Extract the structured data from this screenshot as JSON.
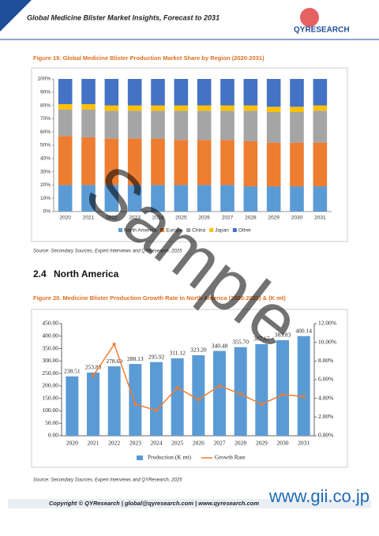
{
  "header": {
    "title": "Global Medicine Blister Market Insights, Forecast to 2031",
    "logo": "QYRESEARCH"
  },
  "watermark": "Sample",
  "section": {
    "number": "2.4",
    "title": "North America"
  },
  "sources": [
    "Source: Secondary Sources, Expert Interviews and QYResearch, 2025",
    "Source: Secondary Sources, Expert Interviews and QYResearch, 2025"
  ],
  "footer": {
    "copyright": "Copyright © QYResearch | global@qyresearch.com | www.qyresearch.com",
    "site": "www.gii.co.jp"
  },
  "chart_data": [
    {
      "type": "stacked_bar",
      "title": "Figure 19.  Global Medicine Blister Production Market Share by Region (2020-2031)",
      "categories": [
        "2020",
        "2021",
        "2022",
        "2023",
        "2024",
        "2025",
        "2026",
        "2027",
        "2028",
        "2029",
        "2030",
        "2031"
      ],
      "series": [
        {
          "name": "North America",
          "color": "#5b9bd5",
          "values": [
            20,
            20,
            20,
            20,
            20,
            20,
            20,
            20,
            19,
            19,
            19,
            19
          ]
        },
        {
          "name": "Europe",
          "color": "#ed7d31",
          "values": [
            37,
            36,
            35,
            35,
            35,
            34,
            34,
            34,
            34,
            33,
            33,
            33
          ]
        },
        {
          "name": "China",
          "color": "#a5a5a5",
          "values": [
            20,
            21,
            21,
            21,
            21,
            22,
            22,
            22,
            23,
            23,
            23,
            24
          ]
        },
        {
          "name": "Japan",
          "color": "#ffc000",
          "values": [
            4,
            4,
            4,
            4,
            4,
            4,
            4,
            4,
            4,
            4,
            4,
            4
          ]
        },
        {
          "name": "Other",
          "color": "#4472c4",
          "values": [
            19,
            19,
            20,
            20,
            20,
            20,
            20,
            20,
            20,
            21,
            21,
            20
          ]
        }
      ],
      "ylim": [
        0,
        100
      ],
      "yticks": [
        {
          "value": 0,
          "label": "0%"
        },
        {
          "value": 10,
          "label": "10%"
        },
        {
          "value": 20,
          "label": "20%"
        },
        {
          "value": 30,
          "label": "30%"
        },
        {
          "value": 40,
          "label": "40%"
        },
        {
          "value": 50,
          "label": "50%"
        },
        {
          "value": 60,
          "label": "60%"
        },
        {
          "value": 70,
          "label": "70%"
        },
        {
          "value": 80,
          "label": "80%"
        },
        {
          "value": 90,
          "label": "90%"
        },
        {
          "value": 100,
          "label": "100%"
        }
      ],
      "grid": false
    },
    {
      "type": "bar",
      "title": "Figure 20.  Medicine Blister Production Growth Rate in North America (2020-2031) & (K mt)",
      "categories": [
        "2020",
        "2021",
        "2022",
        "2023",
        "2024",
        "2025",
        "2026",
        "2027",
        "2028",
        "2029",
        "2030",
        "2031"
      ],
      "series": [
        {
          "name": "Production (K mt)",
          "type": "bar",
          "color": "#5b9bd5",
          "values": [
            238.51,
            253.83,
            278.69,
            288.13,
            295.92,
            311.12,
            323.2,
            340.48,
            355.7,
            367.67,
            383.83,
            400.14
          ],
          "value_labels": [
            "238.51",
            "253.83",
            "278.69",
            "288.13",
            "295.92",
            "311.12",
            "323.20",
            "340.48",
            "355.70",
            "367.67",
            "383.83",
            "400.14"
          ]
        },
        {
          "name": "Growth Rate",
          "type": "line",
          "axis": "y2",
          "color": "#ed7d31",
          "values": [
            null,
            6.42,
            9.79,
            3.39,
            2.7,
            5.14,
            3.88,
            5.35,
            4.47,
            3.37,
            4.4,
            4.2
          ]
        }
      ],
      "ylim": [
        0,
        450
      ],
      "yticks": [
        {
          "value": 0,
          "label": "0.00"
        },
        {
          "value": 50,
          "label": "50.00"
        },
        {
          "value": 100,
          "label": "100.00"
        },
        {
          "value": 150,
          "label": "150.00"
        },
        {
          "value": 200,
          "label": "200.00"
        },
        {
          "value": 250,
          "label": "250.00"
        },
        {
          "value": 300,
          "label": "300.00"
        },
        {
          "value": 350,
          "label": "350.00"
        },
        {
          "value": 400,
          "label": "400.00"
        },
        {
          "value": 450,
          "label": "450.00"
        }
      ],
      "y2lim": [
        0,
        12
      ],
      "y2ticks": [
        {
          "value": 0,
          "label": "0.00%"
        },
        {
          "value": 2,
          "label": "2.00%"
        },
        {
          "value": 4,
          "label": "4.00%"
        },
        {
          "value": 6,
          "label": "6.00%"
        },
        {
          "value": 8,
          "label": "8.00%"
        },
        {
          "value": 10,
          "label": "10.00%"
        },
        {
          "value": 12,
          "label": "12.00%"
        }
      ],
      "grid": false
    }
  ]
}
